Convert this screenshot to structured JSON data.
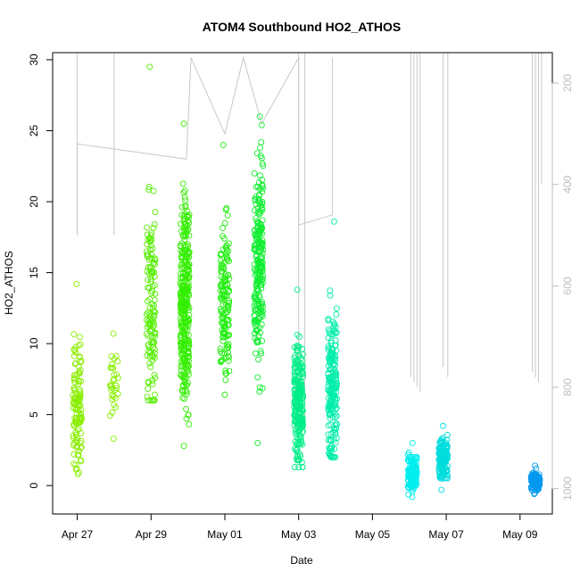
{
  "chart_data": {
    "type": "scatter",
    "title": "ATOM4 Southbound HO2_ATHOS",
    "xlabel": "Date",
    "ylabel": "HO2_ATHOS",
    "x_ticks": [
      "Apr 27",
      "Apr 29",
      "May 01",
      "May 03",
      "May 05",
      "May 07",
      "May 09"
    ],
    "xlim": [
      "2016-04-26 08:00",
      "2016-05-09 21:00"
    ],
    "ylim": [
      -2,
      30.5
    ],
    "y_ticks": [
      0,
      5,
      10,
      15,
      20,
      25,
      30
    ],
    "y2_ticks": [
      200,
      400,
      600,
      800,
      1000
    ],
    "y2lim": [
      1050,
      140
    ],
    "grid": false,
    "legend": "none",
    "colors": {
      "frame": "#000000",
      "altitude_line": "#c8c8c8",
      "right_axis": "#bdbdbd"
    },
    "series": [
      {
        "clusters": [
          {
            "x": "2016-04-27 00:00",
            "y_min": 0.8,
            "y_max": 14.2,
            "y_center": 5.5,
            "n": 120,
            "color": "#8aee00"
          },
          {
            "x": "2016-04-28 00:00",
            "y_min": 3.3,
            "y_max": 10.7,
            "y_center": 7.0,
            "n": 30,
            "color": "#88ee00"
          },
          {
            "x": "2016-04-29 00:00",
            "y_min": 6.0,
            "y_max": 29.5,
            "y_center": 13.0,
            "n": 130,
            "color": "#55ee00"
          },
          {
            "x": "2016-04-29 22:00",
            "y_min": 2.8,
            "y_max": 25.5,
            "y_center": 12.5,
            "n": 320,
            "color": "#33ee00"
          },
          {
            "x": "2016-05-01 00:00",
            "y_min": 6.4,
            "y_max": 24.0,
            "y_center": 13.0,
            "n": 140,
            "color": "#22ee10"
          },
          {
            "x": "2016-05-01 22:00",
            "y_min": 3.0,
            "y_max": 26.0,
            "y_center": 16.0,
            "n": 240,
            "color": "#11ee30"
          },
          {
            "x": "2016-05-03 00:00",
            "y_min": 1.3,
            "y_max": 13.8,
            "y_center": 6.0,
            "n": 240,
            "color": "#00ee88"
          },
          {
            "x": "2016-05-03 22:00",
            "y_min": 2.0,
            "y_max": 18.6,
            "y_center": 7.0,
            "n": 200,
            "color": "#00eeaa"
          },
          {
            "x": "2016-05-06 02:00",
            "y_min": -0.8,
            "y_max": 3.0,
            "y_center": 0.8,
            "n": 160,
            "color": "#00eeee"
          },
          {
            "x": "2016-05-06 22:00",
            "y_min": -0.3,
            "y_max": 4.2,
            "y_center": 1.9,
            "n": 150,
            "color": "#00dddd"
          },
          {
            "x": "2016-05-09 10:00",
            "y_min": -0.6,
            "y_max": 1.4,
            "y_center": 0.3,
            "n": 130,
            "color": "#0099ee"
          }
        ]
      }
    ]
  }
}
